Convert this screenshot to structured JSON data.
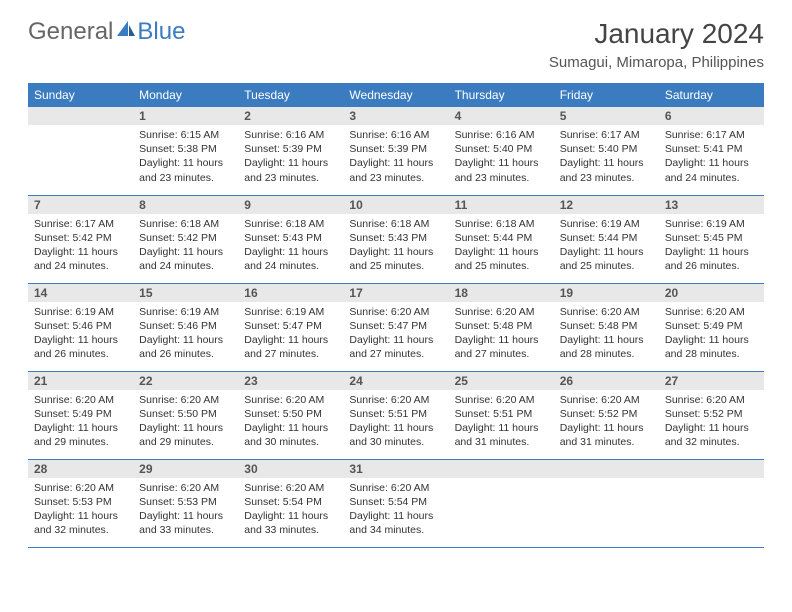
{
  "logo": {
    "general": "General",
    "blue": "Blue"
  },
  "title": "January 2024",
  "location": "Sumagui, Mimaropa, Philippines",
  "weekdays": [
    "Sunday",
    "Monday",
    "Tuesday",
    "Wednesday",
    "Thursday",
    "Friday",
    "Saturday"
  ],
  "colors": {
    "header_bg": "#3b7bbf",
    "header_text": "#ffffff",
    "daynum_bg": "#e8e8e8",
    "border": "#3b7bbf",
    "body_text": "#333333",
    "title_text": "#444444"
  },
  "type": "calendar-table",
  "weeks": [
    [
      null,
      {
        "n": "1",
        "sr": "6:15 AM",
        "ss": "5:38 PM",
        "dl": "11 hours and 23 minutes."
      },
      {
        "n": "2",
        "sr": "6:16 AM",
        "ss": "5:39 PM",
        "dl": "11 hours and 23 minutes."
      },
      {
        "n": "3",
        "sr": "6:16 AM",
        "ss": "5:39 PM",
        "dl": "11 hours and 23 minutes."
      },
      {
        "n": "4",
        "sr": "6:16 AM",
        "ss": "5:40 PM",
        "dl": "11 hours and 23 minutes."
      },
      {
        "n": "5",
        "sr": "6:17 AM",
        "ss": "5:40 PM",
        "dl": "11 hours and 23 minutes."
      },
      {
        "n": "6",
        "sr": "6:17 AM",
        "ss": "5:41 PM",
        "dl": "11 hours and 24 minutes."
      }
    ],
    [
      {
        "n": "7",
        "sr": "6:17 AM",
        "ss": "5:42 PM",
        "dl": "11 hours and 24 minutes."
      },
      {
        "n": "8",
        "sr": "6:18 AM",
        "ss": "5:42 PM",
        "dl": "11 hours and 24 minutes."
      },
      {
        "n": "9",
        "sr": "6:18 AM",
        "ss": "5:43 PM",
        "dl": "11 hours and 24 minutes."
      },
      {
        "n": "10",
        "sr": "6:18 AM",
        "ss": "5:43 PM",
        "dl": "11 hours and 25 minutes."
      },
      {
        "n": "11",
        "sr": "6:18 AM",
        "ss": "5:44 PM",
        "dl": "11 hours and 25 minutes."
      },
      {
        "n": "12",
        "sr": "6:19 AM",
        "ss": "5:44 PM",
        "dl": "11 hours and 25 minutes."
      },
      {
        "n": "13",
        "sr": "6:19 AM",
        "ss": "5:45 PM",
        "dl": "11 hours and 26 minutes."
      }
    ],
    [
      {
        "n": "14",
        "sr": "6:19 AM",
        "ss": "5:46 PM",
        "dl": "11 hours and 26 minutes."
      },
      {
        "n": "15",
        "sr": "6:19 AM",
        "ss": "5:46 PM",
        "dl": "11 hours and 26 minutes."
      },
      {
        "n": "16",
        "sr": "6:19 AM",
        "ss": "5:47 PM",
        "dl": "11 hours and 27 minutes."
      },
      {
        "n": "17",
        "sr": "6:20 AM",
        "ss": "5:47 PM",
        "dl": "11 hours and 27 minutes."
      },
      {
        "n": "18",
        "sr": "6:20 AM",
        "ss": "5:48 PM",
        "dl": "11 hours and 27 minutes."
      },
      {
        "n": "19",
        "sr": "6:20 AM",
        "ss": "5:48 PM",
        "dl": "11 hours and 28 minutes."
      },
      {
        "n": "20",
        "sr": "6:20 AM",
        "ss": "5:49 PM",
        "dl": "11 hours and 28 minutes."
      }
    ],
    [
      {
        "n": "21",
        "sr": "6:20 AM",
        "ss": "5:49 PM",
        "dl": "11 hours and 29 minutes."
      },
      {
        "n": "22",
        "sr": "6:20 AM",
        "ss": "5:50 PM",
        "dl": "11 hours and 29 minutes."
      },
      {
        "n": "23",
        "sr": "6:20 AM",
        "ss": "5:50 PM",
        "dl": "11 hours and 30 minutes."
      },
      {
        "n": "24",
        "sr": "6:20 AM",
        "ss": "5:51 PM",
        "dl": "11 hours and 30 minutes."
      },
      {
        "n": "25",
        "sr": "6:20 AM",
        "ss": "5:51 PM",
        "dl": "11 hours and 31 minutes."
      },
      {
        "n": "26",
        "sr": "6:20 AM",
        "ss": "5:52 PM",
        "dl": "11 hours and 31 minutes."
      },
      {
        "n": "27",
        "sr": "6:20 AM",
        "ss": "5:52 PM",
        "dl": "11 hours and 32 minutes."
      }
    ],
    [
      {
        "n": "28",
        "sr": "6:20 AM",
        "ss": "5:53 PM",
        "dl": "11 hours and 32 minutes."
      },
      {
        "n": "29",
        "sr": "6:20 AM",
        "ss": "5:53 PM",
        "dl": "11 hours and 33 minutes."
      },
      {
        "n": "30",
        "sr": "6:20 AM",
        "ss": "5:54 PM",
        "dl": "11 hours and 33 minutes."
      },
      {
        "n": "31",
        "sr": "6:20 AM",
        "ss": "5:54 PM",
        "dl": "11 hours and 34 minutes."
      },
      null,
      null,
      null
    ]
  ],
  "labels": {
    "sunrise": "Sunrise:",
    "sunset": "Sunset:",
    "daylight": "Daylight:"
  }
}
